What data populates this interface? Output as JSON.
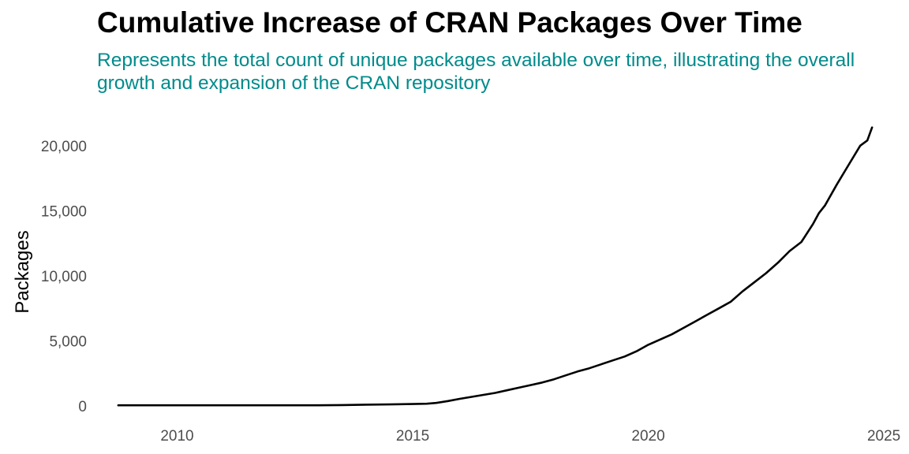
{
  "chart_data": {
    "type": "line",
    "title": "Cumulative Increase of CRAN Packages Over Time",
    "subtitle": "Represents the total count of unique packages available over time, illustrating the overall growth and expansion of the CRAN repository",
    "xlabel": "",
    "ylabel": "Packages",
    "x_ticks": [
      2010,
      2015,
      2020,
      2025
    ],
    "y_ticks": [
      0,
      5000,
      10000,
      15000,
      20000
    ],
    "y_tick_labels": [
      "0",
      "5,000",
      "10,000",
      "15,000",
      "20,000"
    ],
    "xlim": [
      2008.3,
      2025.3
    ],
    "ylim": [
      -300,
      21500
    ],
    "grid": false,
    "legend": "none",
    "line_color": "#000000",
    "series": [
      {
        "x": [
          2008.75,
          2010,
          2011,
          2012,
          2013,
          2013.5,
          2014,
          2014.5,
          2015,
          2015.3,
          2015.5,
          2015.75,
          2016,
          2016.25,
          2016.5,
          2016.75,
          2017,
          2017.25,
          2017.5,
          2017.75,
          2018,
          2018.25,
          2018.5,
          2018.75,
          2019,
          2019.25,
          2019.5,
          2019.75,
          2020,
          2020.25,
          2020.5,
          2020.75,
          2021,
          2021.25,
          2021.5,
          2021.75,
          2022,
          2022.25,
          2022.5,
          2022.75,
          2023,
          2023.25,
          2023.5,
          2023.62,
          2023.75,
          2024,
          2024.25,
          2024.5,
          2024.65,
          2024.75
        ],
        "y": [
          50,
          50,
          50,
          50,
          50,
          70,
          100,
          120,
          150,
          170,
          230,
          380,
          550,
          700,
          850,
          1000,
          1200,
          1400,
          1600,
          1800,
          2050,
          2350,
          2650,
          2900,
          3200,
          3500,
          3800,
          4200,
          4700,
          5100,
          5500,
          6000,
          6500,
          7000,
          7500,
          8000,
          8800,
          9500,
          10200,
          11000,
          11900,
          12600,
          14000,
          14800,
          15400,
          17000,
          18500,
          20000,
          20400,
          21400
        ]
      }
    ]
  }
}
